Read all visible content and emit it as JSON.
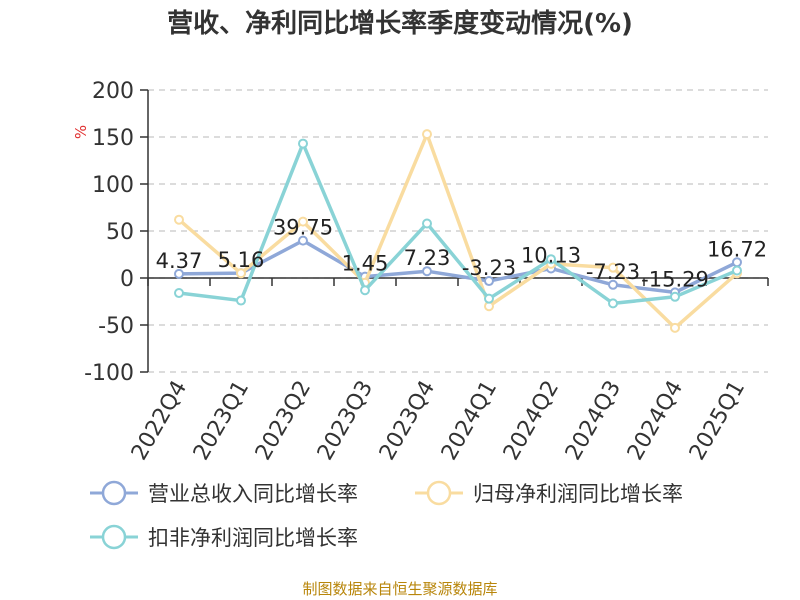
{
  "title": "营收、净利同比增长率季度变动情况(%)",
  "source": "制图数据来自恒生聚源数据库",
  "chart_data": {
    "type": "line",
    "unit": "%",
    "categories": [
      "2022Q4",
      "2023Q1",
      "2023Q2",
      "2023Q3",
      "2023Q4",
      "2024Q1",
      "2024Q2",
      "2024Q3",
      "2024Q4",
      "2025Q1"
    ],
    "ylim": [
      -100,
      200
    ],
    "yticks": [
      200,
      150,
      100,
      50,
      0,
      -50,
      -100
    ],
    "grid": true,
    "legend_position": "bottom",
    "series": [
      {
        "name": "营业总收入同比增长率",
        "color": "#8fa8d8",
        "values": [
          4.37,
          5.16,
          39.75,
          1.45,
          7.23,
          -3.23,
          10.13,
          -7.23,
          -15.29,
          16.72
        ],
        "labels": [
          "4.37",
          "5.16",
          "39.75",
          "1.45",
          "7.23",
          "-3.23",
          "10.13",
          "-7.23",
          "-15.29",
          "16.72"
        ]
      },
      {
        "name": "归母净利润同比增长率",
        "color": "#f9dca0",
        "values": [
          62,
          5,
          60,
          -5,
          153,
          -30,
          15,
          11,
          -53,
          5
        ]
      },
      {
        "name": "扣非净利润同比增长率",
        "color": "#89d3d6",
        "values": [
          -16,
          -24,
          143,
          -13,
          58,
          -22,
          20,
          -27,
          -20,
          8
        ]
      }
    ]
  }
}
